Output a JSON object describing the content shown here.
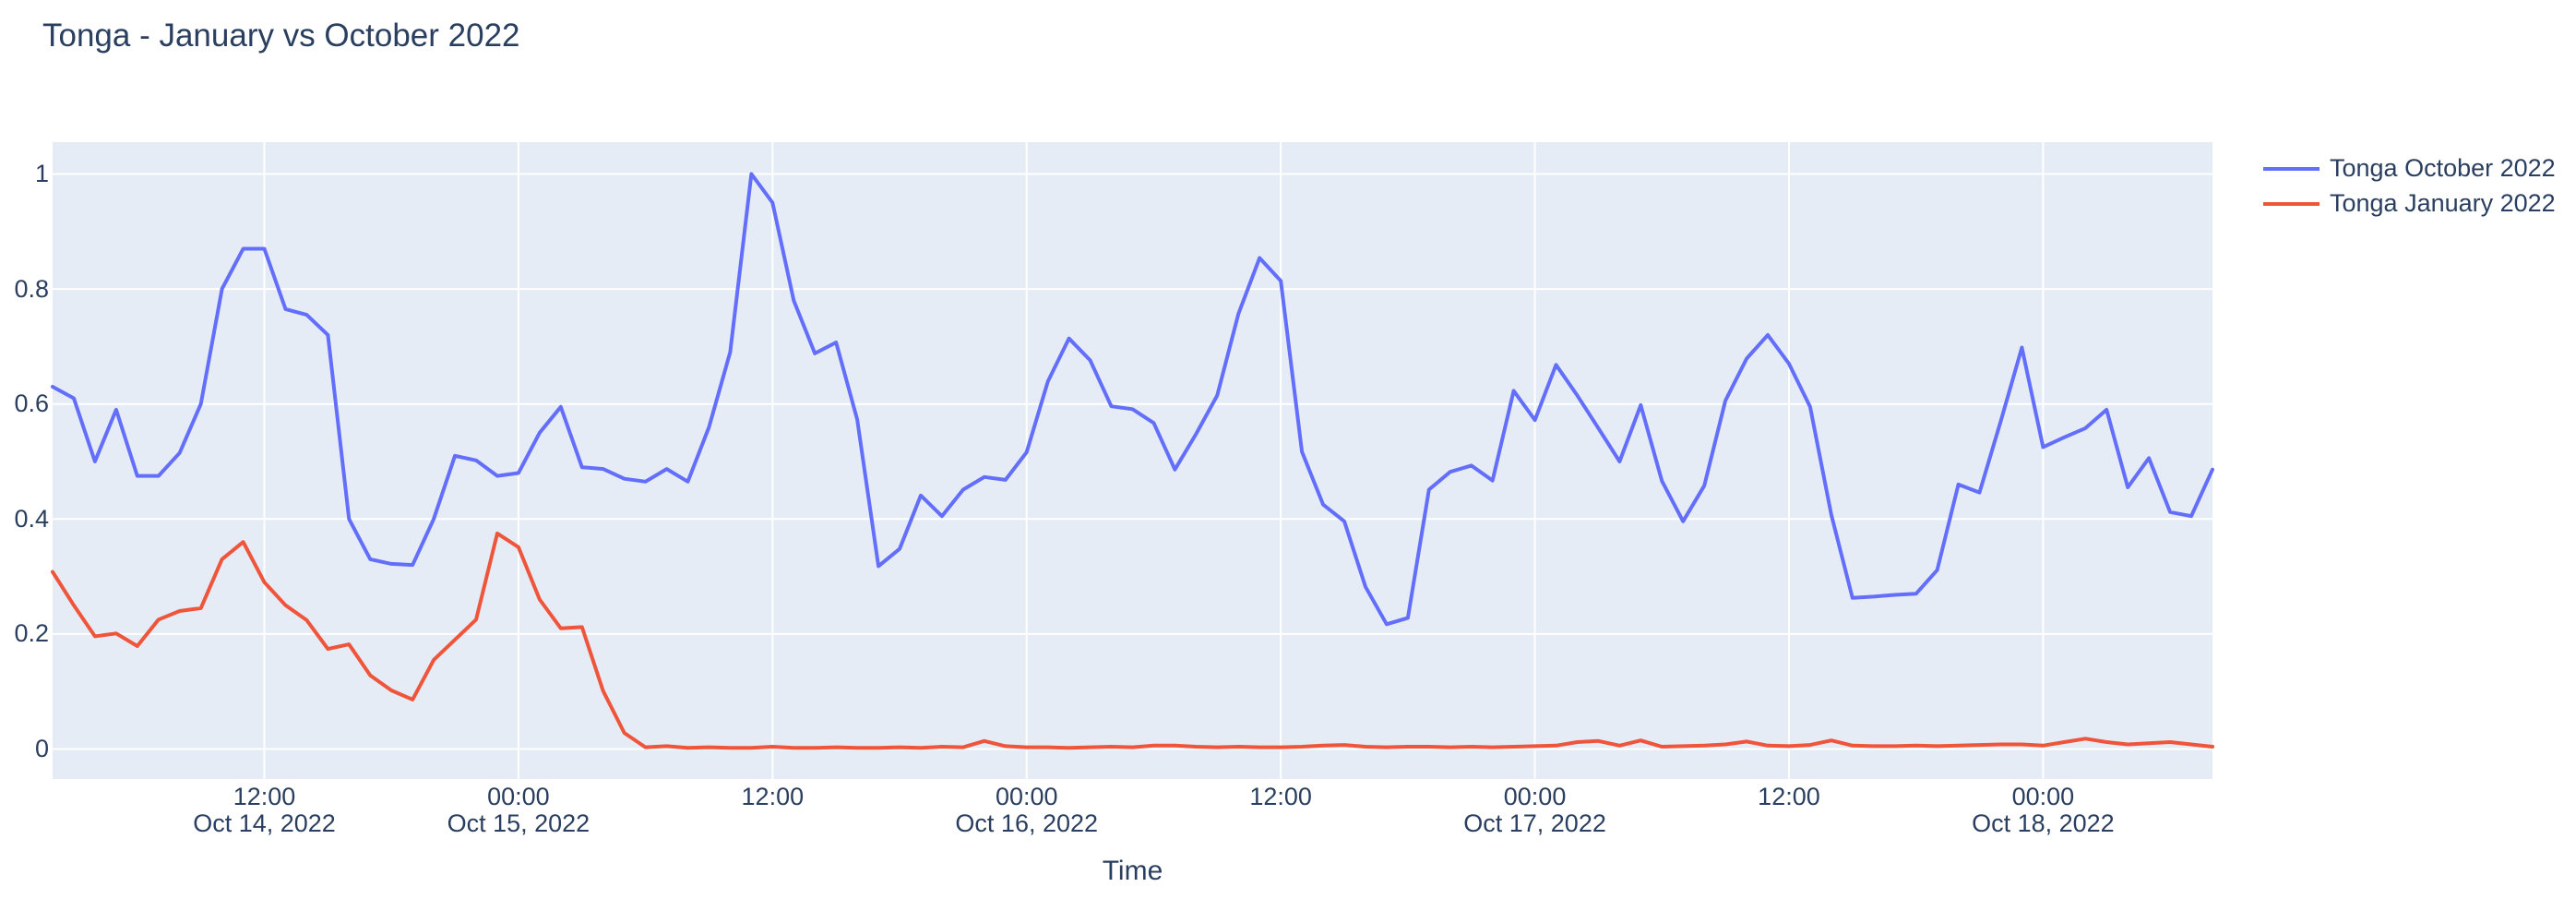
{
  "title": "Tonga - January vs October 2022",
  "x_axis_title": "Time",
  "colors": {
    "plot_background": "#e5ecf6",
    "grid": "#ffffff",
    "text": "#2a3f5f",
    "series_october": "#636efa",
    "series_january": "#ef553b"
  },
  "legend": {
    "items": [
      {
        "label": "Tonga October 2022",
        "color": "#636efa"
      },
      {
        "label": "Tonga January 2022",
        "color": "#ef553b"
      }
    ]
  },
  "chart_data": {
    "type": "line",
    "title": "Tonga - January vs October 2022",
    "xlabel": "Time",
    "ylabel": "",
    "x_start": "2022-10-14 02:00",
    "x_step_hours": 1,
    "ylim": [
      -0.052,
      1.055
    ],
    "yticks": [
      0,
      0.2,
      0.4,
      0.6,
      0.8,
      1
    ],
    "xticks": [
      {
        "hour": 10,
        "line1": "12:00",
        "line2": "Oct 14, 2022"
      },
      {
        "hour": 22,
        "line1": "00:00",
        "line2": "Oct 15, 2022"
      },
      {
        "hour": 34,
        "line1": "12:00",
        "line2": ""
      },
      {
        "hour": 46,
        "line1": "00:00",
        "line2": "Oct 16, 2022"
      },
      {
        "hour": 58,
        "line1": "12:00",
        "line2": ""
      },
      {
        "hour": 70,
        "line1": "00:00",
        "line2": "Oct 17, 2022"
      },
      {
        "hour": 82,
        "line1": "12:00",
        "line2": ""
      },
      {
        "hour": 94,
        "line1": "00:00",
        "line2": "Oct 18, 2022"
      }
    ],
    "grid": true,
    "legend_position": "top-right-outside",
    "series": [
      {
        "name": "Tonga October 2022",
        "color": "#636efa",
        "values": [
          0.63,
          0.61,
          0.5,
          0.59,
          0.475,
          0.475,
          0.515,
          0.6,
          0.8,
          0.87,
          0.87,
          0.765,
          0.755,
          0.72,
          0.4,
          0.33,
          0.322,
          0.32,
          0.4,
          0.51,
          0.502,
          0.475,
          0.48,
          0.55,
          0.595,
          0.49,
          0.487,
          0.47,
          0.465,
          0.487,
          0.465,
          0.56,
          0.69,
          1.0,
          0.95,
          0.78,
          0.688,
          0.707,
          0.573,
          0.318,
          0.348,
          0.441,
          0.405,
          0.451,
          0.473,
          0.468,
          0.516,
          0.639,
          0.714,
          0.676,
          0.596,
          0.591,
          0.567,
          0.486,
          0.548,
          0.615,
          0.757,
          0.854,
          0.814,
          0.517,
          0.425,
          0.396,
          0.282,
          0.217,
          0.228,
          0.451,
          0.482,
          0.493,
          0.467,
          0.623,
          0.572,
          0.668,
          0.615,
          0.558,
          0.5,
          0.598,
          0.466,
          0.396,
          0.458,
          0.606,
          0.679,
          0.72,
          0.67,
          0.595,
          0.407,
          0.263,
          0.265,
          0.268,
          0.27,
          0.311,
          0.46,
          0.446,
          0.57,
          0.698,
          0.525,
          0.542,
          0.558,
          0.59,
          0.455,
          0.506,
          0.412,
          0.405,
          0.486
        ]
      },
      {
        "name": "Tonga January 2022",
        "color": "#ef553b",
        "values": [
          0.308,
          0.25,
          0.196,
          0.201,
          0.179,
          0.225,
          0.24,
          0.245,
          0.33,
          0.36,
          0.29,
          0.25,
          0.224,
          0.174,
          0.182,
          0.128,
          0.102,
          0.086,
          0.155,
          0.19,
          0.225,
          0.375,
          0.351,
          0.26,
          0.21,
          0.212,
          0.101,
          0.028,
          0.003,
          0.005,
          0.002,
          0.003,
          0.002,
          0.002,
          0.004,
          0.002,
          0.002,
          0.003,
          0.002,
          0.002,
          0.003,
          0.002,
          0.004,
          0.003,
          0.014,
          0.005,
          0.003,
          0.003,
          0.002,
          0.003,
          0.004,
          0.003,
          0.006,
          0.006,
          0.004,
          0.003,
          0.004,
          0.003,
          0.003,
          0.004,
          0.006,
          0.007,
          0.004,
          0.003,
          0.004,
          0.004,
          0.003,
          0.004,
          0.003,
          0.004,
          0.005,
          0.006,
          0.012,
          0.014,
          0.006,
          0.015,
          0.004,
          0.005,
          0.006,
          0.008,
          0.013,
          0.006,
          0.005,
          0.007,
          0.015,
          0.006,
          0.005,
          0.005,
          0.006,
          0.005,
          0.006,
          0.007,
          0.008,
          0.008,
          0.006,
          0.012,
          0.018,
          0.012,
          0.008,
          0.01,
          0.012,
          0.008,
          0.004
        ]
      }
    ]
  }
}
